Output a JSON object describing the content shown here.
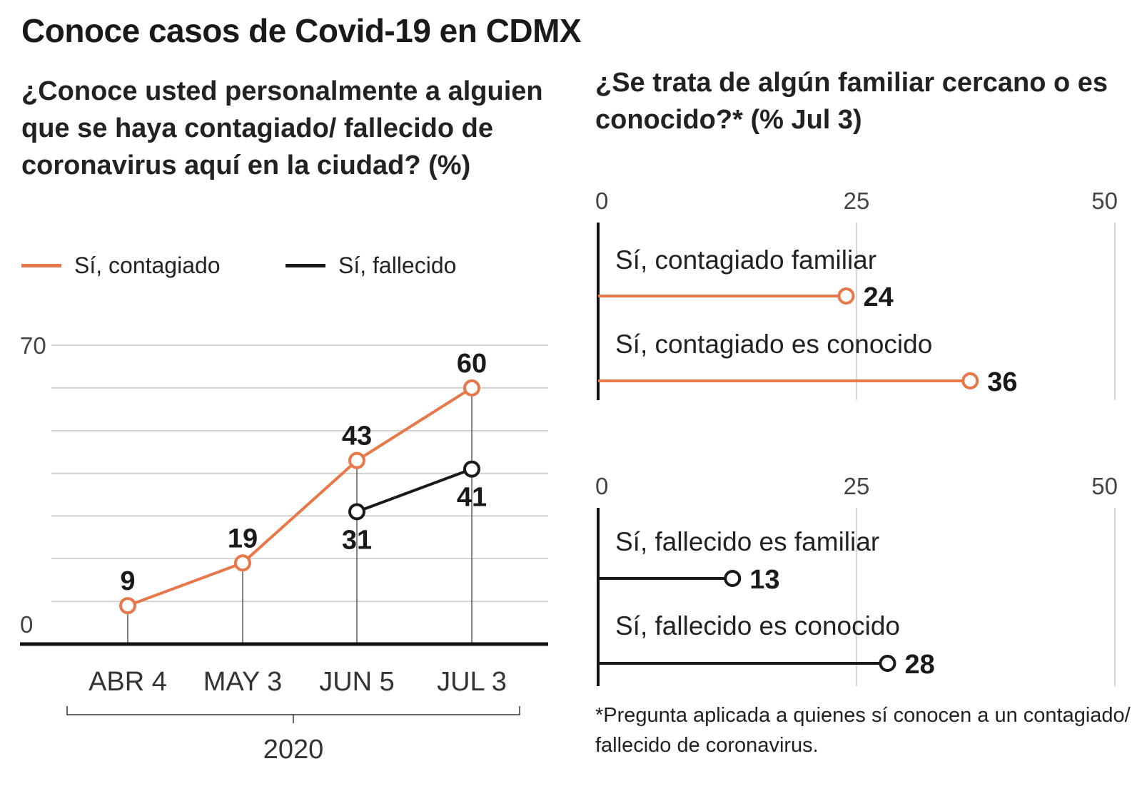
{
  "title": "Conoce casos de Covid-19 en CDMX",
  "left_question": "¿Conoce usted personalmente a alguien que se haya contagiado/ fallecido de coronavirus aquí en la ciudad? (%)",
  "right_question": "¿Se trata de algún familiar cercano o es conocido?* (% Jul 3)",
  "footnote": "*Pregunta aplicada a quienes sí conocen a un contagiado/ fallecido de coronavirus.",
  "colors": {
    "contagiado": "#e8774a",
    "fallecido": "#1a1a1a",
    "grid": "#c8c8c8"
  },
  "chart_data": [
    {
      "type": "line",
      "categories": [
        "ABR 4",
        "MAY 3",
        "JUN 5",
        "JUL 3"
      ],
      "x_group_label": "2020",
      "ylim": [
        0,
        70
      ],
      "y_tick_labels": [
        "0",
        "70"
      ],
      "grid": true,
      "legend_position": "top-left",
      "series": [
        {
          "name": "Sí, contagiado",
          "color": "#e8774a",
          "values": [
            9,
            19,
            43,
            60
          ]
        },
        {
          "name": "Sí, fallecido",
          "color": "#1a1a1a",
          "values": [
            null,
            null,
            31,
            41
          ]
        }
      ]
    },
    {
      "type": "bar",
      "style": "lollipop",
      "xlim": [
        0,
        50
      ],
      "x_ticks": [
        0,
        25,
        50
      ],
      "categories": [
        "Sí, contagiado familiar",
        "Sí, contagiado es conocido"
      ],
      "values": [
        24,
        36
      ],
      "color": "#e8774a"
    },
    {
      "type": "bar",
      "style": "lollipop",
      "xlim": [
        0,
        50
      ],
      "x_ticks": [
        0,
        25,
        50
      ],
      "categories": [
        "Sí, fallecido es familiar",
        "Sí, fallecido es conocido"
      ],
      "values": [
        13,
        28
      ],
      "color": "#1a1a1a"
    }
  ]
}
